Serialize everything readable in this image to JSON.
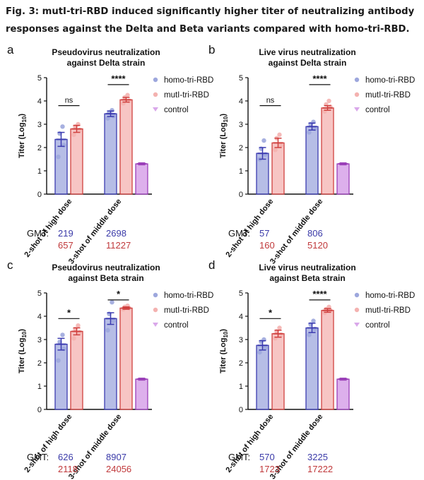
{
  "caption": {
    "line1": "Fig. 3: mutI-tri-RBD induced significantly higher titer of neutralizing antibody",
    "line2": "responses against the Delta and Beta variants compared with homo-tri-RBD."
  },
  "colors": {
    "homo": "#3b3bb0",
    "homo_fill": "#9da7dd",
    "mutl": "#d0413f",
    "mutl_fill": "#f4b2b0",
    "control": "#9a3fb8",
    "control_fill": "#d9a7ea"
  },
  "legend_labels": [
    "homo-tri-RBD",
    "mutI-tri-RBD",
    "control"
  ],
  "gmt_label": "GMT:",
  "chart_data": [
    {
      "type": "bar",
      "panel_letter": "a",
      "title_line1": "Pseudovirus neutralization",
      "title_line2": "against Delta strain",
      "ylabel": "Titer (Log",
      "ylabel_sub": "10",
      "ylabel_end": ")",
      "ylim": [
        0,
        5
      ],
      "yticks": [
        "0",
        "1",
        "2",
        "3",
        "4",
        "5"
      ],
      "categories": [
        "2-shot of high dose",
        "3-shot of middle dose"
      ],
      "legend": "right",
      "series": [
        {
          "name": "homo-tri-RBD",
          "values": [
            2.35,
            3.45
          ],
          "err": [
            0.3,
            0.12
          ],
          "points": [
            [
              1.6,
              2.1,
              2.6,
              2.9
            ],
            [
              3.25,
              3.35,
              3.5,
              3.6
            ]
          ]
        },
        {
          "name": "mutI-tri-RBD",
          "values": [
            2.8,
            4.05
          ],
          "err": [
            0.15,
            0.1
          ],
          "points": [
            [
              2.55,
              2.75,
              2.9,
              3.0
            ],
            [
              3.9,
              4.0,
              4.15,
              4.25
            ]
          ]
        },
        {
          "name": "control",
          "values": [
            null,
            1.3
          ],
          "err": [
            null,
            0.04
          ],
          "points": [
            [],
            []
          ]
        }
      ],
      "significance": [
        {
          "category": 0,
          "label": "ns",
          "y": 3.8
        },
        {
          "category": 1,
          "label": "****",
          "y": 4.7
        }
      ],
      "gmt": {
        "homo": [
          "219",
          "2698"
        ],
        "mutl": [
          "657",
          "11227"
        ]
      }
    },
    {
      "type": "bar",
      "panel_letter": "b",
      "title_line1": "Live virus neutralization",
      "title_line2": "against Delta strain",
      "ylabel": "Titer (Log",
      "ylabel_sub": "10",
      "ylabel_end": ")",
      "ylim": [
        0,
        5
      ],
      "yticks": [
        "0",
        "1",
        "2",
        "3",
        "4",
        "5"
      ],
      "categories": [
        "2-shot of high dose",
        "3-shot of middle dose"
      ],
      "legend": "right",
      "series": [
        {
          "name": "homo-tri-RBD",
          "values": [
            1.75,
            2.9
          ],
          "err": [
            0.25,
            0.15
          ],
          "points": [
            [
              1.5,
              1.7,
              1.95,
              2.3
            ],
            [
              2.65,
              2.8,
              3.0,
              3.1
            ]
          ]
        },
        {
          "name": "mutI-tri-RBD",
          "values": [
            2.2,
            3.7
          ],
          "err": [
            0.2,
            0.1
          ],
          "points": [
            [
              1.9,
              2.1,
              2.4,
              2.55
            ],
            [
              3.55,
              3.75,
              3.85,
              4.0
            ]
          ]
        },
        {
          "name": "control",
          "values": [
            null,
            1.3
          ],
          "err": [
            null,
            0.04
          ],
          "points": [
            [],
            []
          ]
        }
      ],
      "significance": [
        {
          "category": 0,
          "label": "ns",
          "y": 3.8
        },
        {
          "category": 1,
          "label": "****",
          "y": 4.7
        }
      ],
      "gmt": {
        "homo": [
          "57",
          "806"
        ],
        "mutl": [
          "160",
          "5120"
        ]
      }
    },
    {
      "type": "bar",
      "panel_letter": "c",
      "title_line1": "Pseudovirus neutralization",
      "title_line2": "against Beta strain",
      "ylabel": "Titer (Log",
      "ylabel_sub": "10",
      "ylabel_end": ")",
      "ylim": [
        0,
        5
      ],
      "yticks": [
        "0",
        "1",
        "2",
        "3",
        "4",
        "5"
      ],
      "categories": [
        "2-shot of high dose",
        "3-shot of middle dose"
      ],
      "legend": "right",
      "series": [
        {
          "name": "homo-tri-RBD",
          "values": [
            2.8,
            3.9
          ],
          "err": [
            0.25,
            0.25
          ],
          "points": [
            [
              2.1,
              2.6,
              2.9,
              3.2
            ],
            [
              3.4,
              3.8,
              4.1,
              4.6
            ]
          ]
        },
        {
          "name": "mutI-tri-RBD",
          "values": [
            3.35,
            4.35
          ],
          "err": [
            0.15,
            0.05
          ],
          "points": [
            [
              3.05,
              3.3,
              3.45,
              3.6
            ],
            [
              4.3,
              4.35,
              4.4,
              4.45
            ]
          ]
        },
        {
          "name": "control",
          "values": [
            null,
            1.3
          ],
          "err": [
            null,
            0.04
          ],
          "points": [
            [],
            []
          ]
        }
      ],
      "significance": [
        {
          "category": 0,
          "label": "*",
          "y": 3.9
        },
        {
          "category": 1,
          "label": "*",
          "y": 4.7
        }
      ],
      "gmt": {
        "homo": [
          "626",
          "8907"
        ],
        "mutl": [
          "2118",
          "24056"
        ]
      }
    },
    {
      "type": "bar",
      "panel_letter": "d",
      "title_line1": "Live virus neutralization",
      "title_line2": "against Beta strain",
      "ylabel": "Titer (Log",
      "ylabel_sub": "10",
      "ylabel_end": ")",
      "ylim": [
        0,
        5
      ],
      "yticks": [
        "0",
        "1",
        "2",
        "3",
        "4",
        "5"
      ],
      "categories": [
        "2-shot of high dose",
        "3-shot of middle dose"
      ],
      "legend": "right",
      "series": [
        {
          "name": "homo-tri-RBD",
          "values": [
            2.75,
            3.5
          ],
          "err": [
            0.2,
            0.2
          ],
          "points": [
            [
              2.45,
              2.65,
              2.9,
              3.0
            ],
            [
              3.2,
              3.45,
              3.65,
              3.8
            ]
          ]
        },
        {
          "name": "mutI-tri-RBD",
          "values": [
            3.25,
            4.25
          ],
          "err": [
            0.15,
            0.08
          ],
          "points": [
            [
              3.05,
              3.2,
              3.35,
              3.5
            ],
            [
              4.15,
              4.25,
              4.3,
              4.4
            ]
          ]
        },
        {
          "name": "control",
          "values": [
            null,
            1.3
          ],
          "err": [
            null,
            0.04
          ],
          "points": [
            [],
            []
          ]
        }
      ],
      "significance": [
        {
          "category": 0,
          "label": "*",
          "y": 3.9
        },
        {
          "category": 1,
          "label": "****",
          "y": 4.7
        }
      ],
      "gmt": {
        "homo": [
          "570",
          "3225"
        ],
        "mutl": [
          "1723",
          "17222"
        ]
      }
    }
  ]
}
